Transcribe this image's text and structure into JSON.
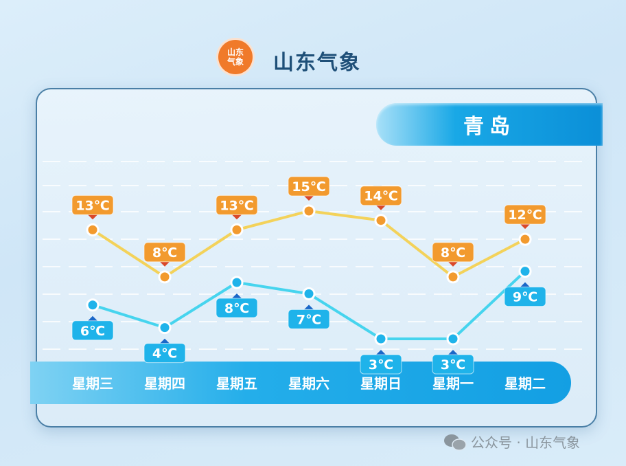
{
  "header": {
    "logo_text": [
      "山东",
      "气象"
    ],
    "brand": "山东气象"
  },
  "city": "青岛",
  "watermark": "公众号 · 山东气象",
  "colors": {
    "high": "#f29a2e",
    "high_line": "#f3d25a",
    "low": "#1fb3ea",
    "low_line": "#46d4ee"
  },
  "chart_data": {
    "type": "line",
    "categories": [
      "星期三",
      "星期四",
      "星期五",
      "星期六",
      "星期日",
      "星期一",
      "星期二"
    ],
    "unit": "℃",
    "series": [
      {
        "values": [
          13,
          8,
          13,
          15,
          14,
          8,
          12
        ]
      },
      {
        "values": [
          6,
          4,
          8,
          7,
          3,
          3,
          9
        ]
      }
    ],
    "grid": true
  }
}
